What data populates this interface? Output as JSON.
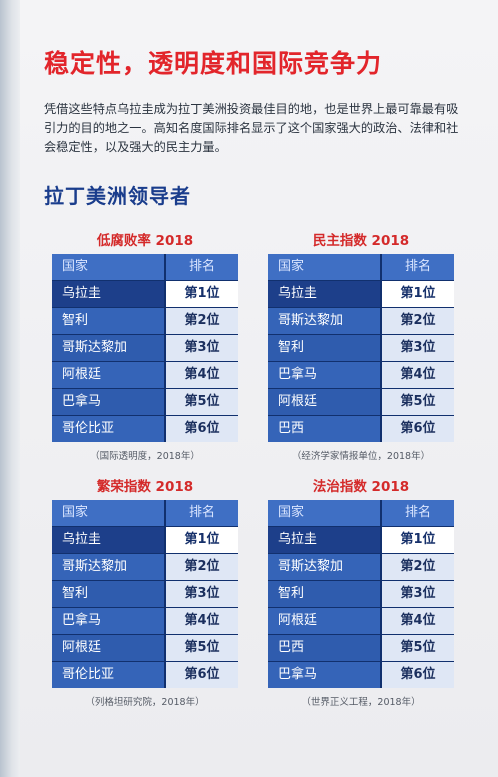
{
  "title": "稳定性，透明度和国际竞争力",
  "paragraph": "凭借这些特点乌拉圭成为拉丁美洲投资最佳目的地，也是世界上最可靠最有吸引力的目的地之一。高知名度国际排名显示了这个国家强大的政治、法律和社会稳定性，以及强大的民主力量。",
  "subtitle": "拉丁美洲领导者",
  "tables": [
    {
      "title": "低腐败率 2018",
      "head": [
        "国家",
        "排名"
      ],
      "rows": [
        [
          "乌拉圭",
          "第1位"
        ],
        [
          "智利",
          "第2位"
        ],
        [
          "哥斯达黎加",
          "第3位"
        ],
        [
          "阿根廷",
          "第4位"
        ],
        [
          "巴拿马",
          "第5位"
        ],
        [
          "哥伦比亚",
          "第6位"
        ]
      ],
      "source": "（国际透明度，2018年）"
    },
    {
      "title": "民主指数 2018",
      "head": [
        "国家",
        "排名"
      ],
      "rows": [
        [
          "乌拉圭",
          "第1位"
        ],
        [
          "哥斯达黎加",
          "第2位"
        ],
        [
          "智利",
          "第3位"
        ],
        [
          "巴拿马",
          "第4位"
        ],
        [
          "阿根廷",
          "第5位"
        ],
        [
          "巴西",
          "第6位"
        ]
      ],
      "source": "（经济学家情报单位，2018年）"
    },
    {
      "title": "繁荣指数 2018",
      "head": [
        "国家",
        "排名"
      ],
      "rows": [
        [
          "乌拉圭",
          "第1位"
        ],
        [
          "哥斯达黎加",
          "第2位"
        ],
        [
          "智利",
          "第3位"
        ],
        [
          "巴拿马",
          "第4位"
        ],
        [
          "阿根廷",
          "第5位"
        ],
        [
          "哥伦比亚",
          "第6位"
        ]
      ],
      "source": "（列格坦研究院，2018年）"
    },
    {
      "title": "法治指数 2018",
      "head": [
        "国家",
        "排名"
      ],
      "rows": [
        [
          "乌拉圭",
          "第1位"
        ],
        [
          "哥斯达黎加",
          "第2位"
        ],
        [
          "智利",
          "第3位"
        ],
        [
          "阿根廷",
          "第4位"
        ],
        [
          "巴西",
          "第5位"
        ],
        [
          "巴拿马",
          "第6位"
        ]
      ],
      "source": "（世界正义工程，2018年）"
    }
  ]
}
